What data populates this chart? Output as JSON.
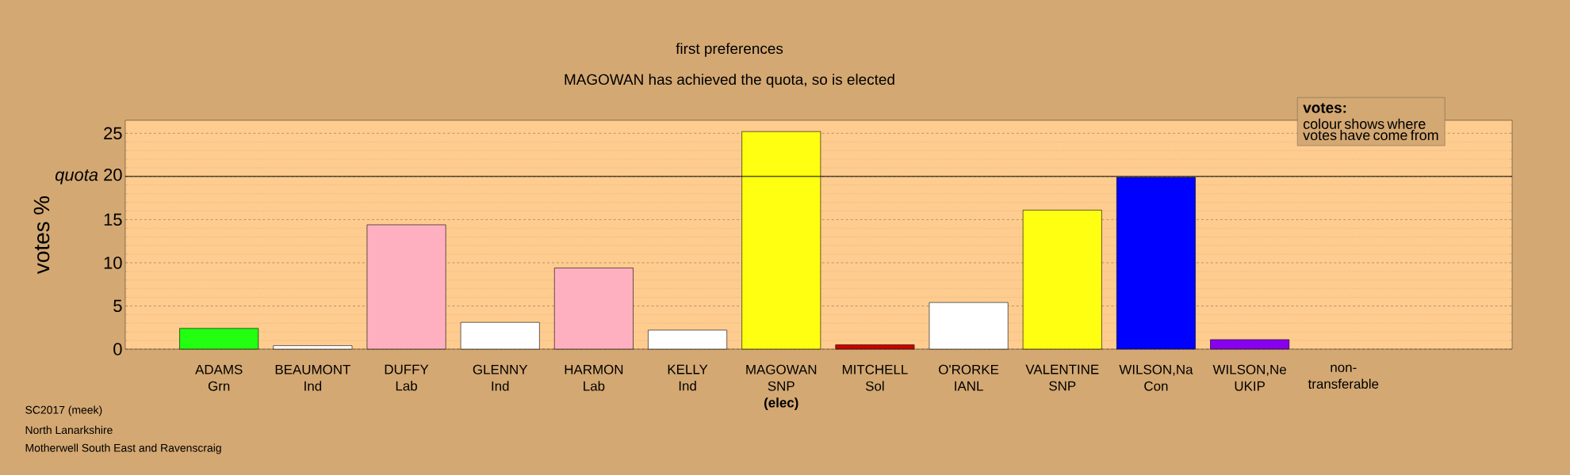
{
  "chart_data": {
    "type": "bar",
    "title": "first preferences",
    "subtitle": "MAGOWAN has achieved the quota, so is elected",
    "ylabel": "votes %",
    "categories": [
      "ADAMS\nGrn",
      "BEAUMONT\nInd",
      "DUFFY\nLab",
      "GLENNY\nInd",
      "HARMON\nLab",
      "KELLY\nInd",
      "MAGOWAN\nSNP\n**(elec)**",
      "MITCHELL\nSol",
      "O'RORKE\nIANL",
      "VALENTINE\nSNP",
      "WILSON,Na\nCon",
      "WILSON,Ne\nUKIP",
      "non-\ntransferable"
    ],
    "values": [
      2.4,
      0.4,
      14.4,
      3.1,
      9.4,
      2.2,
      25.2,
      0.5,
      5.4,
      16.1,
      19.9,
      1.1,
      null
    ],
    "colors": [
      "#22ff11",
      "#ffffff",
      "#ffb0c0",
      "#ffffff",
      "#ffb0c0",
      "#ffffff",
      "#ffff11",
      "#cc0000",
      "#ffffff",
      "#ffff11",
      "#0000ff",
      "#8800ee",
      "#ffffff"
    ],
    "ylim": [
      0,
      26.5
    ],
    "yticks": [
      0,
      5,
      10,
      15,
      {
        "value": 20,
        "label": "*quota* 20"
      },
      25
    ],
    "grid": "y",
    "ref_lines": [
      {
        "axis": "y",
        "value": 20
      }
    ],
    "annotations": [
      "SC2017 (meek)",
      "North Lanarkshire",
      "Motherwell South East and Ravenscraig",
      "votes:",
      "colour shows where votes have come from"
    ]
  }
}
